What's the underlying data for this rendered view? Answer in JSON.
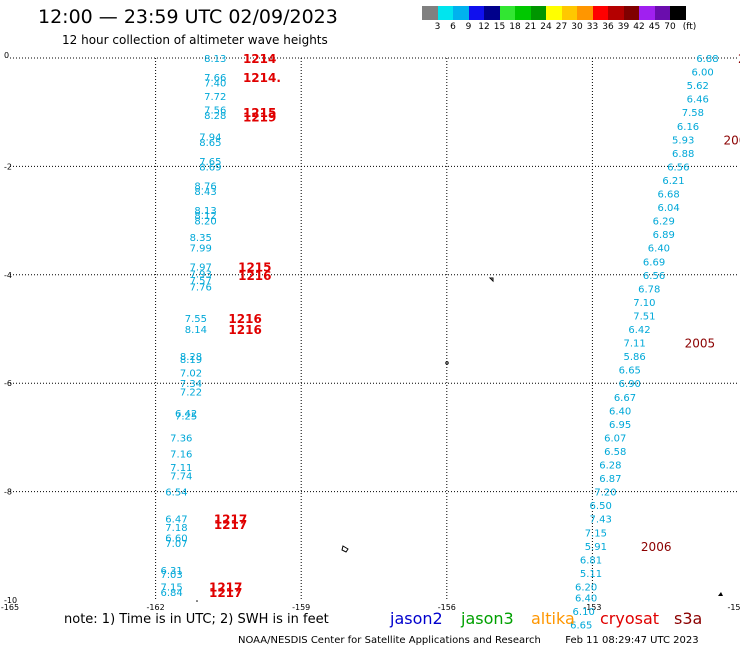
{
  "header": {
    "title": "12:00 — 23:59 UTC 02/09/2023",
    "subtitle": "12 hour collection of altimeter wave heights"
  },
  "colorbar": {
    "unit": "(ft)",
    "ticks": [
      "3",
      "6",
      "9",
      "12",
      "15",
      "18",
      "21",
      "24",
      "27",
      "30",
      "33",
      "36",
      "39",
      "42",
      "45",
      "70"
    ],
    "colors": [
      "#808080",
      "#00e5ee",
      "#00b2ee",
      "#1010ee",
      "#00008b",
      "#32e632",
      "#00c800",
      "#009600",
      "#ffff00",
      "#ffc800",
      "#ff9600",
      "#ff0000",
      "#b40000",
      "#800000",
      "#a020f0",
      "#6a0dad",
      "#000000"
    ]
  },
  "map": {
    "x_ticks": [
      "-165",
      "-162",
      "-159",
      "-156",
      "-153",
      "-15"
    ],
    "y_ticks": [
      "0",
      "-2",
      "-4",
      "-6",
      "-8",
      "-10"
    ]
  },
  "chart_data": {
    "type": "scatter",
    "xlabel": "",
    "ylabel": "",
    "xlim": [
      -165,
      -150
    ],
    "ylim": [
      -10,
      0
    ],
    "left_track_swh_ft": [
      {
        "x": -161.0,
        "y": 0.0,
        "v": "8.13"
      },
      {
        "x": -161.0,
        "y": -0.35,
        "v": "7.66"
      },
      {
        "x": -161.0,
        "y": -0.45,
        "v": "7.40"
      },
      {
        "x": -161.0,
        "y": -0.7,
        "v": "7.72"
      },
      {
        "x": -161.0,
        "y": -0.95,
        "v": "7.56"
      },
      {
        "x": -161.0,
        "y": -1.05,
        "v": "8.28"
      },
      {
        "x": -161.1,
        "y": -1.45,
        "v": "7.94"
      },
      {
        "x": -161.1,
        "y": -1.55,
        "v": "8.65"
      },
      {
        "x": -161.1,
        "y": -1.9,
        "v": "7.65"
      },
      {
        "x": -161.1,
        "y": -2.0,
        "v": "8.69"
      },
      {
        "x": -161.2,
        "y": -2.35,
        "v": "8.76"
      },
      {
        "x": -161.2,
        "y": -2.45,
        "v": "8.43"
      },
      {
        "x": -161.2,
        "y": -2.8,
        "v": "8.13"
      },
      {
        "x": -161.2,
        "y": -2.9,
        "v": "8.12"
      },
      {
        "x": -161.2,
        "y": -3.0,
        "v": "8.20"
      },
      {
        "x": -161.3,
        "y": -3.3,
        "v": "8.35"
      },
      {
        "x": -161.3,
        "y": -3.5,
        "v": "7.99"
      },
      {
        "x": -161.3,
        "y": -3.85,
        "v": "7.97"
      },
      {
        "x": -161.3,
        "y": -3.98,
        "v": "7.93"
      },
      {
        "x": -161.3,
        "y": -4.1,
        "v": "7.57"
      },
      {
        "x": -161.3,
        "y": -4.22,
        "v": "7.76"
      },
      {
        "x": -161.4,
        "y": -4.8,
        "v": "7.55"
      },
      {
        "x": -161.4,
        "y": -5.0,
        "v": "8.14"
      },
      {
        "x": -161.5,
        "y": -5.5,
        "v": "8.28"
      },
      {
        "x": -161.5,
        "y": -5.55,
        "v": "8.19"
      },
      {
        "x": -161.5,
        "y": -5.8,
        "v": "7.02"
      },
      {
        "x": -161.5,
        "y": -6.0,
        "v": "7.34"
      },
      {
        "x": -161.5,
        "y": -6.15,
        "v": "7.22"
      },
      {
        "x": -161.6,
        "y": -6.55,
        "v": "6.42"
      },
      {
        "x": -161.6,
        "y": -6.6,
        "v": "7.25"
      },
      {
        "x": -161.7,
        "y": -7.0,
        "v": "7.36"
      },
      {
        "x": -161.7,
        "y": -7.3,
        "v": "7.16"
      },
      {
        "x": -161.7,
        "y": -7.55,
        "v": "7.11"
      },
      {
        "x": -161.7,
        "y": -7.7,
        "v": "7.74"
      },
      {
        "x": -161.8,
        "y": -8.0,
        "v": "6.54"
      },
      {
        "x": -161.8,
        "y": -8.5,
        "v": "6.47"
      },
      {
        "x": -161.8,
        "y": -8.65,
        "v": "7.18"
      },
      {
        "x": -161.8,
        "y": -8.85,
        "v": "6.60"
      },
      {
        "x": -161.8,
        "y": -8.95,
        "v": "7.07"
      },
      {
        "x": -161.9,
        "y": -9.45,
        "v": "6.31"
      },
      {
        "x": -161.9,
        "y": -9.52,
        "v": "7.03"
      },
      {
        "x": -161.9,
        "y": -9.75,
        "v": "7.15"
      },
      {
        "x": -161.9,
        "y": -9.85,
        "v": "6.84"
      }
    ],
    "right_track_swh_ft": [
      {
        "x": -150.4,
        "y": 0.0,
        "v": "6.88"
      },
      {
        "x": -150.5,
        "y": -0.25,
        "v": "6.00"
      },
      {
        "x": -150.6,
        "y": -0.5,
        "v": "5.62"
      },
      {
        "x": -150.6,
        "y": -0.75,
        "v": "6.46"
      },
      {
        "x": -150.7,
        "y": -1.0,
        "v": "7.58"
      },
      {
        "x": -150.8,
        "y": -1.25,
        "v": "6.16"
      },
      {
        "x": -150.9,
        "y": -1.5,
        "v": "5.93"
      },
      {
        "x": -150.9,
        "y": -1.75,
        "v": "6.88"
      },
      {
        "x": -151.0,
        "y": -2.0,
        "v": "6.56"
      },
      {
        "x": -151.1,
        "y": -2.25,
        "v": "6.21"
      },
      {
        "x": -151.2,
        "y": -2.5,
        "v": "6.68"
      },
      {
        "x": -151.2,
        "y": -2.75,
        "v": "6.04"
      },
      {
        "x": -151.3,
        "y": -3.0,
        "v": "6.29"
      },
      {
        "x": -151.3,
        "y": -3.25,
        "v": "6.89"
      },
      {
        "x": -151.4,
        "y": -3.5,
        "v": "6.40"
      },
      {
        "x": -151.5,
        "y": -3.75,
        "v": "6.69"
      },
      {
        "x": -151.5,
        "y": -4.0,
        "v": "6.56"
      },
      {
        "x": -151.6,
        "y": -4.25,
        "v": "6.78"
      },
      {
        "x": -151.7,
        "y": -4.5,
        "v": "7.10"
      },
      {
        "x": -151.7,
        "y": -4.75,
        "v": "7.51"
      },
      {
        "x": -151.8,
        "y": -5.0,
        "v": "6.42"
      },
      {
        "x": -151.9,
        "y": -5.25,
        "v": "7.11"
      },
      {
        "x": -151.9,
        "y": -5.5,
        "v": "5.86"
      },
      {
        "x": -152.0,
        "y": -5.75,
        "v": "6.65"
      },
      {
        "x": -152.0,
        "y": -6.0,
        "v": "6.90"
      },
      {
        "x": -152.1,
        "y": -6.25,
        "v": "6.67"
      },
      {
        "x": -152.2,
        "y": -6.5,
        "v": "6.40"
      },
      {
        "x": -152.2,
        "y": -6.75,
        "v": "6.95"
      },
      {
        "x": -152.3,
        "y": -7.0,
        "v": "6.07"
      },
      {
        "x": -152.3,
        "y": -7.25,
        "v": "6.58"
      },
      {
        "x": -152.4,
        "y": -7.5,
        "v": "6.28"
      },
      {
        "x": -152.4,
        "y": -7.75,
        "v": "6.87"
      },
      {
        "x": -152.5,
        "y": -8.0,
        "v": "7.20"
      },
      {
        "x": -152.6,
        "y": -8.25,
        "v": "6.50"
      },
      {
        "x": -152.6,
        "y": -8.5,
        "v": "7.43"
      },
      {
        "x": -152.7,
        "y": -8.75,
        "v": "7.15"
      },
      {
        "x": -152.7,
        "y": -9.0,
        "v": "5.91"
      },
      {
        "x": -152.8,
        "y": -9.25,
        "v": "6.81"
      },
      {
        "x": -152.8,
        "y": -9.5,
        "v": "5.11"
      },
      {
        "x": -152.9,
        "y": -9.75,
        "v": "6.20"
      },
      {
        "x": -152.9,
        "y": -9.95,
        "v": "6.40"
      },
      {
        "x": -152.95,
        "y": -10.2,
        "v": "6.10"
      },
      {
        "x": -153.0,
        "y": -10.45,
        "v": "6.65"
      }
    ],
    "left_time_labels": [
      {
        "x": -160.2,
        "y": 0.0,
        "t": "1214"
      },
      {
        "x": -160.2,
        "y": -0.35,
        "t": "1214."
      },
      {
        "x": -160.2,
        "y": -1.0,
        "t": "1215"
      },
      {
        "x": -160.2,
        "y": -1.08,
        "t": "1219"
      },
      {
        "x": -160.3,
        "y": -3.85,
        "t": "1215"
      },
      {
        "x": -160.3,
        "y": -4.0,
        "t": "1216"
      },
      {
        "x": -160.5,
        "y": -4.8,
        "t": "1216"
      },
      {
        "x": -160.5,
        "y": -5.0,
        "t": "1216"
      },
      {
        "x": -160.8,
        "y": -8.5,
        "t": "1217"
      },
      {
        "x": -160.8,
        "y": -8.6,
        "t": "1217"
      },
      {
        "x": -160.9,
        "y": -9.75,
        "t": "1217"
      },
      {
        "x": -160.9,
        "y": -9.85,
        "t": "1217"
      }
    ],
    "right_time_labels": [
      {
        "x": -150.0,
        "y": 0.0,
        "t": "2"
      },
      {
        "x": -150.3,
        "y": -1.5,
        "t": "200"
      },
      {
        "x": -151.1,
        "y": -5.25,
        "t": "2005"
      },
      {
        "x": -152.0,
        "y": -9.0,
        "t": "2006"
      }
    ],
    "satellites": [
      {
        "name": "jason2",
        "color": "#0000cd"
      },
      {
        "name": "jason3",
        "color": "#00a000"
      },
      {
        "name": "altika",
        "color": "#ff9600"
      },
      {
        "name": "cryosat",
        "color": "#e00000"
      },
      {
        "name": "s3a",
        "color": "#8b0000"
      }
    ]
  },
  "footer": {
    "note": "note: 1) Time is in UTC; 2) SWH is in feet",
    "credit": "NOAA/NESDIS Center for Satellite Applications and Research",
    "timestamp": "Feb 11 08:29:47 UTC 2023"
  }
}
